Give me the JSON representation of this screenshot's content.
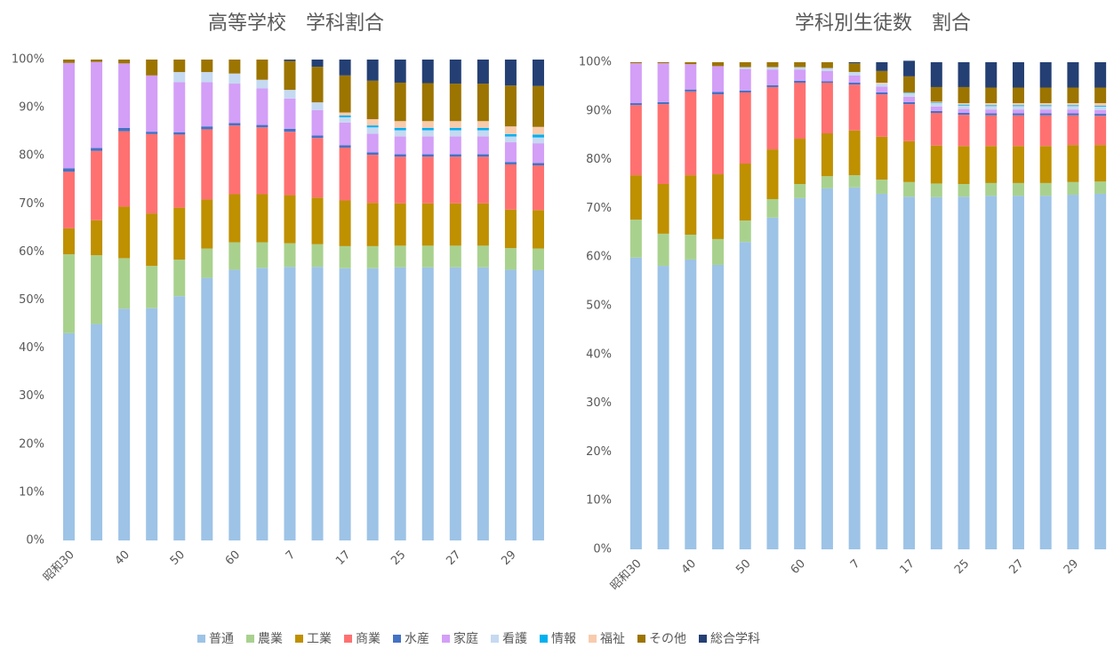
{
  "legend": {
    "series": [
      {
        "name": "普通",
        "color": "#9dc3e6"
      },
      {
        "name": "農業",
        "color": "#a9d18e"
      },
      {
        "name": "工業",
        "color": "#bf9000"
      },
      {
        "name": "商業",
        "color": "#ff7171"
      },
      {
        "name": "水産",
        "color": "#4472c4"
      },
      {
        "name": "家庭",
        "color": "#d39ff7"
      },
      {
        "name": "看護",
        "color": "#c5d9f1"
      },
      {
        "name": "情報",
        "color": "#00b0f0"
      },
      {
        "name": "福祉",
        "color": "#f8cbad"
      },
      {
        "name": "その他",
        "color": "#9c7400"
      },
      {
        "name": "総合学科",
        "color": "#243f73"
      }
    ]
  },
  "chart_data": [
    {
      "type": "stacked_bar",
      "title": "高等学校　学科割合",
      "categories": [
        "昭和30",
        null,
        "40",
        null,
        "50",
        null,
        "60",
        null,
        "7",
        null,
        "17",
        null,
        "25",
        null,
        "27",
        null,
        "29",
        null
      ],
      "ylim": [
        0,
        100
      ],
      "yticks": [
        {
          "value": 0,
          "label": "0%"
        },
        {
          "value": 10,
          "label": "10%"
        },
        {
          "value": 20,
          "label": "20%"
        },
        {
          "value": 30,
          "label": "30%"
        },
        {
          "value": 40,
          "label": "40%"
        },
        {
          "value": 50,
          "label": "50%"
        },
        {
          "value": 60,
          "label": "60%"
        },
        {
          "value": 70,
          "label": "70%"
        },
        {
          "value": 80,
          "label": "80%"
        },
        {
          "value": 90,
          "label": "90%"
        },
        {
          "value": 100,
          "label": "100%"
        }
      ],
      "series": [
        {
          "values": [
            43.1,
            45.0,
            48.2,
            48.3,
            50.8,
            54.6,
            56.3,
            56.7,
            56.9,
            56.9,
            56.6,
            56.6,
            56.8,
            56.8,
            56.8,
            56.8,
            56.3,
            56.2
          ]
        },
        {
          "values": [
            16.4,
            14.3,
            10.5,
            8.8,
            7.6,
            6.1,
            5.7,
            5.3,
            4.9,
            4.7,
            4.6,
            4.6,
            4.5,
            4.5,
            4.5,
            4.5,
            4.5,
            4.5
          ]
        },
        {
          "values": [
            5.4,
            7.3,
            10.7,
            10.9,
            10.8,
            10.2,
            10.0,
            10.0,
            10.0,
            9.7,
            9.5,
            9.0,
            8.8,
            8.8,
            8.8,
            8.8,
            8.0,
            8.0
          ]
        },
        {
          "values": [
            11.8,
            14.4,
            15.7,
            16.5,
            15.2,
            14.6,
            14.3,
            13.9,
            13.2,
            12.4,
            11.0,
            10.0,
            9.7,
            9.7,
            9.7,
            9.7,
            9.4,
            9.3
          ]
        },
        {
          "values": [
            0.7,
            0.6,
            0.7,
            0.5,
            0.5,
            0.6,
            0.5,
            0.5,
            0.6,
            0.5,
            0.5,
            0.5,
            0.5,
            0.5,
            0.5,
            0.5,
            0.5,
            0.5
          ]
        },
        {
          "values": [
            21.9,
            17.9,
            13.4,
            11.7,
            10.4,
            9.2,
            8.2,
            7.6,
            6.3,
            5.3,
            4.7,
            3.9,
            3.7,
            3.7,
            3.7,
            3.7,
            4.1,
            4.1
          ]
        },
        {
          "values": [
            0,
            0,
            0,
            0,
            2.1,
            2.1,
            2.1,
            1.8,
            1.8,
            1.6,
            1.1,
            1.3,
            1.3,
            1.3,
            1.3,
            1.3,
            1.2,
            1.2
          ]
        },
        {
          "values": [
            0,
            0,
            0,
            0,
            0,
            0,
            0,
            0,
            0,
            0,
            0.4,
            0.4,
            0.5,
            0.5,
            0.5,
            0.5,
            0.5,
            0.6
          ]
        },
        {
          "values": [
            0,
            0,
            0,
            0,
            0,
            0,
            0,
            0,
            0,
            0,
            0.6,
            1.3,
            1.4,
            1.4,
            1.4,
            1.4,
            1.6,
            1.6
          ]
        },
        {
          "values": [
            0.7,
            0.5,
            0.8,
            3.3,
            2.6,
            2.6,
            2.9,
            4.2,
            6.0,
            7.4,
            7.7,
            8.0,
            8.0,
            7.9,
            7.8,
            7.8,
            8.5,
            8.5
          ]
        },
        {
          "values": [
            0,
            0,
            0,
            0,
            0,
            0,
            0,
            0,
            0.3,
            1.5,
            3.3,
            4.4,
            4.8,
            4.9,
            5.0,
            5.0,
            5.4,
            5.5
          ]
        }
      ]
    },
    {
      "type": "stacked_bar",
      "title": "学科別生徒数　割合",
      "categories": [
        "昭和30",
        null,
        "40",
        null,
        "50",
        null,
        "60",
        null,
        "7",
        null,
        "17",
        null,
        "25",
        null,
        "27",
        null,
        "29",
        null
      ],
      "ylim": [
        0,
        100
      ],
      "yticks": [
        {
          "value": 0,
          "label": "0%"
        },
        {
          "value": 10,
          "label": "10%"
        },
        {
          "value": 20,
          "label": "20%"
        },
        {
          "value": 30,
          "label": "30%"
        },
        {
          "value": 40,
          "label": "40%"
        },
        {
          "value": 50,
          "label": "50%"
        },
        {
          "value": 60,
          "label": "60%"
        },
        {
          "value": 70,
          "label": "70%"
        },
        {
          "value": 80,
          "label": "80%"
        },
        {
          "value": 90,
          "label": "90%"
        },
        {
          "value": 100,
          "label": "100%"
        }
      ],
      "series": [
        {
          "values": [
            59.9,
            58.2,
            59.5,
            58.4,
            63.1,
            68.1,
            72.1,
            74.1,
            74.3,
            73.0,
            72.4,
            72.3,
            72.4,
            72.6,
            72.6,
            72.6,
            72.8,
            73.0
          ]
        },
        {
          "values": [
            7.8,
            6.6,
            5.1,
            5.3,
            4.4,
            3.8,
            2.9,
            2.5,
            2.5,
            2.9,
            3.0,
            2.8,
            2.6,
            2.6,
            2.6,
            2.6,
            2.6,
            2.5
          ]
        },
        {
          "values": [
            9.1,
            10.2,
            12.2,
            13.3,
            11.7,
            10.2,
            9.3,
            8.8,
            9.2,
            8.8,
            8.4,
            7.8,
            7.8,
            7.6,
            7.6,
            7.6,
            7.6,
            7.5
          ]
        },
        {
          "values": [
            14.4,
            16.4,
            17.2,
            16.4,
            14.6,
            12.8,
            11.5,
            10.4,
            9.4,
            8.7,
            7.6,
            6.7,
            6.4,
            6.3,
            6.3,
            6.3,
            6.1,
            6.0
          ]
        },
        {
          "values": [
            0.4,
            0.4,
            0.4,
            0.5,
            0.4,
            0.4,
            0.4,
            0.3,
            0.4,
            0.4,
            0.4,
            0.4,
            0.4,
            0.4,
            0.4,
            0.4,
            0.4,
            0.4
          ]
        },
        {
          "values": [
            8.2,
            8.0,
            5.2,
            5.3,
            4.4,
            3.2,
            2.3,
            2.1,
            1.5,
            1.2,
            1.1,
            0.9,
            0.8,
            0.8,
            0.8,
            0.8,
            0.8,
            0.8
          ]
        },
        {
          "values": [
            0,
            0,
            0,
            0,
            0.4,
            0.5,
            0.5,
            0.6,
            0.7,
            0.6,
            0.7,
            0.7,
            0.7,
            0.7,
            0.7,
            0.7,
            0.7,
            0.7
          ]
        },
        {
          "values": [
            0,
            0,
            0,
            0,
            0,
            0,
            0,
            0,
            0,
            0,
            0.1,
            0.1,
            0.2,
            0.2,
            0.2,
            0.2,
            0.2,
            0.2
          ]
        },
        {
          "values": [
            0,
            0,
            0,
            0,
            0,
            0,
            0,
            0,
            0,
            0.2,
            0.1,
            0.2,
            0.3,
            0.4,
            0.4,
            0.4,
            0.4,
            0.5
          ]
        },
        {
          "values": [
            0.2,
            0.2,
            0.4,
            0.8,
            1.0,
            1.0,
            1.0,
            1.2,
            1.8,
            2.4,
            3.3,
            3.0,
            3.3,
            3.2,
            3.2,
            3.2,
            3.2,
            3.2
          ]
        },
        {
          "values": [
            0,
            0,
            0,
            0,
            0,
            0,
            0,
            0,
            0.2,
            1.8,
            3.2,
            5.1,
            5.1,
            5.2,
            5.2,
            5.2,
            5.2,
            5.2
          ]
        }
      ]
    }
  ]
}
